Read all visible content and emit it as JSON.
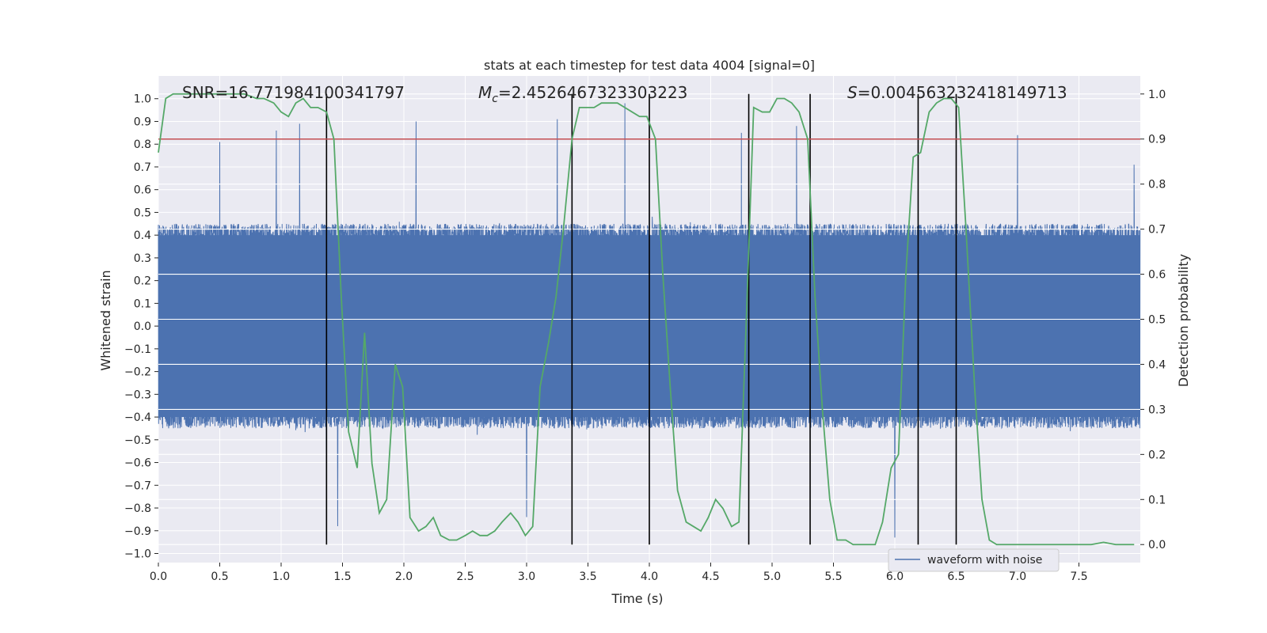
{
  "chart_data": {
    "type": "line",
    "title": "stats at each timestep for test data 4004 [signal=0]",
    "xlabel": "Time (s)",
    "ylabel_left": "Whitened strain",
    "ylabel_right": "Detection probability",
    "xlim": [
      0.0,
      8.0
    ],
    "ylim_left": [
      -1.04,
      1.1
    ],
    "ylim_right": [
      -0.04,
      1.04
    ],
    "x_ticks": [
      "0.0",
      "0.5",
      "1.0",
      "1.5",
      "2.0",
      "2.5",
      "3.0",
      "3.5",
      "4.0",
      "4.5",
      "5.0",
      "5.5",
      "6.0",
      "6.5",
      "7.0",
      "7.5"
    ],
    "y_ticks_left": [
      "1.0",
      "0.9",
      "0.8",
      "0.7",
      "0.6",
      "0.5",
      "0.4",
      "0.3",
      "0.2",
      "0.1",
      "0.0",
      "−0.1",
      "−0.2",
      "−0.3",
      "−0.4",
      "−0.5",
      "−0.6",
      "−0.7",
      "−0.8",
      "−0.9",
      "−1.0"
    ],
    "y_ticks_right": [
      "1.0",
      "0.9",
      "0.8",
      "0.7",
      "0.6",
      "0.5",
      "0.4",
      "0.3",
      "0.2",
      "0.1",
      "0.0"
    ],
    "grid": true,
    "annotations": {
      "snr_label": "SNR=16.771984100341797",
      "mc_symbol": "M",
      "mc_subscript": "c",
      "mc_value": "=2.4526467323303223",
      "s_symbol": "S",
      "s_value": "=0.004563232418149713"
    },
    "threshold": {
      "value_right_axis": 0.9,
      "color": "#c44e52"
    },
    "vertical_lines": [
      1.37,
      3.37,
      4.0,
      4.81,
      5.31,
      6.19,
      6.5
    ],
    "waveform": {
      "name": "waveform with noise",
      "color": "#4c72b0",
      "sample_rate_hz": 512,
      "envelope_core": 0.4,
      "envelope_max": 1.0,
      "notable_peaks": [
        {
          "t": 0.5,
          "v": 0.81
        },
        {
          "t": 0.96,
          "v": 0.86
        },
        {
          "t": 1.15,
          "v": 0.89
        },
        {
          "t": 1.37,
          "v": -0.92
        },
        {
          "t": 1.46,
          "v": -0.88
        },
        {
          "t": 2.1,
          "v": 0.9
        },
        {
          "t": 3.0,
          "v": -0.84
        },
        {
          "t": 3.25,
          "v": 0.91
        },
        {
          "t": 3.8,
          "v": 0.98
        },
        {
          "t": 4.0,
          "v": 0.92
        },
        {
          "t": 4.75,
          "v": 0.85
        },
        {
          "t": 5.2,
          "v": 0.88
        },
        {
          "t": 6.0,
          "v": -0.93
        },
        {
          "t": 7.0,
          "v": 0.84
        },
        {
          "t": 7.95,
          "v": 0.71
        }
      ]
    },
    "detection_probability": {
      "color": "#55a868",
      "t": [
        0.0,
        0.06,
        0.12,
        0.2,
        0.3,
        0.4,
        0.5,
        0.6,
        0.7,
        0.8,
        0.86,
        0.94,
        1.0,
        1.06,
        1.12,
        1.18,
        1.24,
        1.3,
        1.37,
        1.43,
        1.49,
        1.55,
        1.62,
        1.68,
        1.74,
        1.8,
        1.86,
        1.93,
        1.99,
        2.05,
        2.12,
        2.18,
        2.24,
        2.3,
        2.37,
        2.43,
        2.5,
        2.56,
        2.62,
        2.68,
        2.74,
        2.8,
        2.87,
        2.93,
        2.99,
        3.05,
        3.11,
        3.18,
        3.24,
        3.3,
        3.37,
        3.43,
        3.49,
        3.55,
        3.61,
        3.67,
        3.74,
        3.8,
        3.86,
        3.92,
        3.98,
        4.05,
        4.11,
        4.17,
        4.23,
        4.3,
        4.36,
        4.42,
        4.48,
        4.54,
        4.6,
        4.67,
        4.73,
        4.79,
        4.85,
        4.92,
        4.98,
        5.04,
        5.1,
        5.16,
        5.22,
        5.29,
        5.35,
        5.41,
        5.47,
        5.53,
        5.6,
        5.66,
        5.72,
        5.78,
        5.84,
        5.9,
        5.97,
        6.03,
        6.09,
        6.15,
        6.21,
        6.28,
        6.34,
        6.4,
        6.46,
        6.52,
        6.58,
        6.65,
        6.71,
        6.77,
        6.83,
        6.9,
        6.96,
        7.02,
        7.1,
        7.2,
        7.3,
        7.4,
        7.5,
        7.6,
        7.7,
        7.8,
        7.95
      ],
      "p": [
        0.87,
        0.99,
        1.0,
        1.0,
        1.0,
        1.0,
        1.0,
        1.0,
        1.0,
        0.99,
        0.99,
        0.98,
        0.96,
        0.95,
        0.98,
        0.99,
        0.97,
        0.97,
        0.96,
        0.9,
        0.55,
        0.25,
        0.17,
        0.47,
        0.18,
        0.07,
        0.1,
        0.4,
        0.35,
        0.06,
        0.03,
        0.04,
        0.06,
        0.02,
        0.01,
        0.01,
        0.02,
        0.03,
        0.02,
        0.02,
        0.03,
        0.05,
        0.07,
        0.05,
        0.02,
        0.04,
        0.35,
        0.45,
        0.55,
        0.7,
        0.9,
        0.97,
        0.97,
        0.97,
        0.98,
        0.98,
        0.98,
        0.97,
        0.96,
        0.95,
        0.95,
        0.9,
        0.6,
        0.35,
        0.12,
        0.05,
        0.04,
        0.03,
        0.06,
        0.1,
        0.08,
        0.04,
        0.05,
        0.5,
        0.97,
        0.96,
        0.96,
        0.99,
        0.99,
        0.98,
        0.96,
        0.9,
        0.55,
        0.3,
        0.1,
        0.01,
        0.01,
        0.0,
        0.0,
        0.0,
        0.0,
        0.05,
        0.17,
        0.2,
        0.6,
        0.86,
        0.87,
        0.96,
        0.98,
        0.99,
        0.99,
        0.97,
        0.7,
        0.35,
        0.1,
        0.01,
        0.0,
        0.0,
        0.0,
        0.0,
        0.0,
        0.0,
        0.0,
        0.0,
        0.0,
        0.0,
        0.005,
        0.0,
        0.0
      ]
    }
  }
}
